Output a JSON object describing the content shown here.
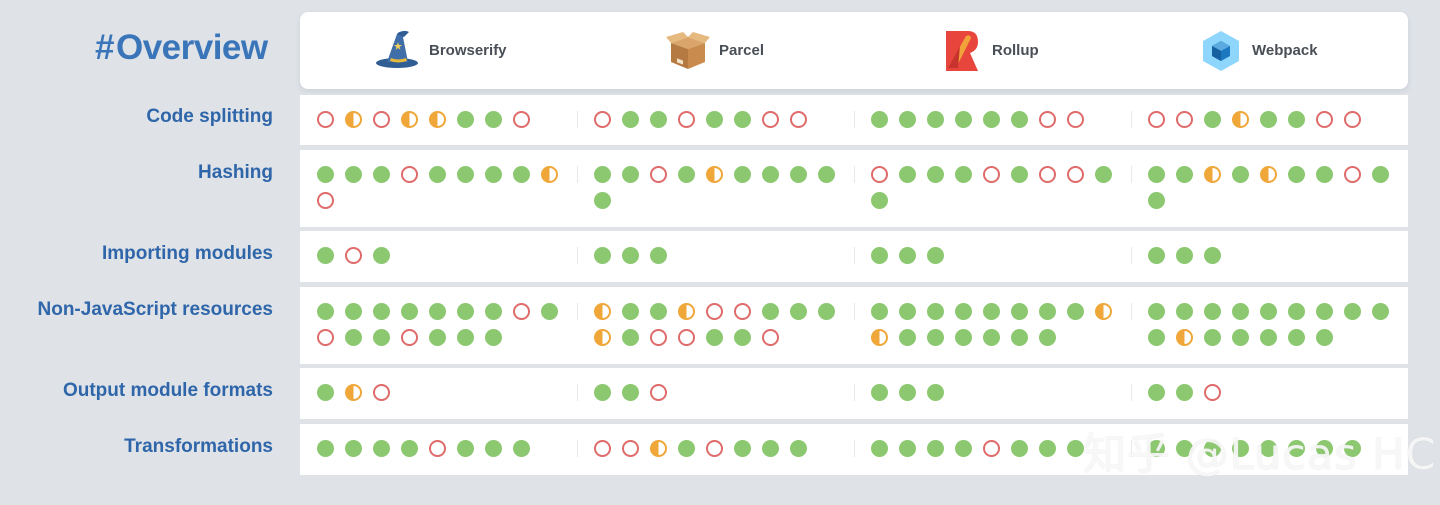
{
  "title": {
    "hash": "#",
    "text": "Overview"
  },
  "tools": [
    {
      "name": "Browserify",
      "icon": "wizard-hat-icon"
    },
    {
      "name": "Parcel",
      "icon": "box-icon"
    },
    {
      "name": "Rollup",
      "icon": "rollup-logo-icon"
    },
    {
      "name": "Webpack",
      "icon": "cube-icon"
    }
  ],
  "legend_colors": {
    "full": "#8cc870",
    "partial": "#f0a73a",
    "none": "#df6b6b"
  },
  "rows": [
    {
      "label": "Code splitting",
      "cells": [
        [
          "n",
          "h",
          "n",
          "h",
          "h",
          "f",
          "f",
          "n"
        ],
        [
          "n",
          "f",
          "f",
          "n",
          "f",
          "f",
          "n",
          "n"
        ],
        [
          "f",
          "f",
          "f",
          "f",
          "f",
          "f",
          "n",
          "n"
        ],
        [
          "n",
          "n",
          "f",
          "h",
          "f",
          "f",
          "n",
          "n"
        ]
      ]
    },
    {
      "label": "Hashing",
      "cells": [
        [
          "f",
          "f",
          "f",
          "n",
          "f",
          "f",
          "f",
          "f",
          "h",
          "n"
        ],
        [
          "f",
          "f",
          "n",
          "f",
          "h",
          "f",
          "f",
          "f",
          "f",
          "f"
        ],
        [
          "n",
          "f",
          "f",
          "f",
          "n",
          "f",
          "n",
          "n",
          "f",
          "f"
        ],
        [
          "f",
          "f",
          "h",
          "f",
          "h",
          "f",
          "f",
          "n",
          "f",
          "f"
        ]
      ]
    },
    {
      "label": "Importing modules",
      "cells": [
        [
          "f",
          "n",
          "f"
        ],
        [
          "f",
          "f",
          "f"
        ],
        [
          "f",
          "f",
          "f"
        ],
        [
          "f",
          "f",
          "f"
        ]
      ]
    },
    {
      "label": "Non-JavaScript resources",
      "cells": [
        [
          "f",
          "f",
          "f",
          "f",
          "f",
          "f",
          "f",
          "n",
          "f",
          "n",
          "f",
          "f",
          "n",
          "f",
          "f",
          "f"
        ],
        [
          "h",
          "f",
          "f",
          "h",
          "n",
          "n",
          "f",
          "f",
          "f",
          "h",
          "f",
          "n",
          "n",
          "f",
          "f",
          "n"
        ],
        [
          "f",
          "f",
          "f",
          "f",
          "f",
          "f",
          "f",
          "f",
          "h",
          "h",
          "f",
          "f",
          "f",
          "f",
          "f",
          "f"
        ],
        [
          "f",
          "f",
          "f",
          "f",
          "f",
          "f",
          "f",
          "f",
          "f",
          "f",
          "h",
          "f",
          "f",
          "f",
          "f",
          "f"
        ]
      ]
    },
    {
      "label": "Output module formats",
      "cells": [
        [
          "f",
          "h",
          "n"
        ],
        [
          "f",
          "f",
          "n"
        ],
        [
          "f",
          "f",
          "f"
        ],
        [
          "f",
          "f",
          "n"
        ]
      ]
    },
    {
      "label": "Transformations",
      "cells": [
        [
          "f",
          "f",
          "f",
          "f",
          "n",
          "f",
          "f",
          "f"
        ],
        [
          "n",
          "n",
          "h",
          "f",
          "n",
          "f",
          "f",
          "f"
        ],
        [
          "f",
          "f",
          "f",
          "f",
          "n",
          "f",
          "f",
          "f"
        ],
        [
          "f",
          "f",
          "f",
          "f",
          "f",
          "f",
          "f",
          "f"
        ]
      ]
    }
  ],
  "watermark": "知乎 @Lucas HC"
}
